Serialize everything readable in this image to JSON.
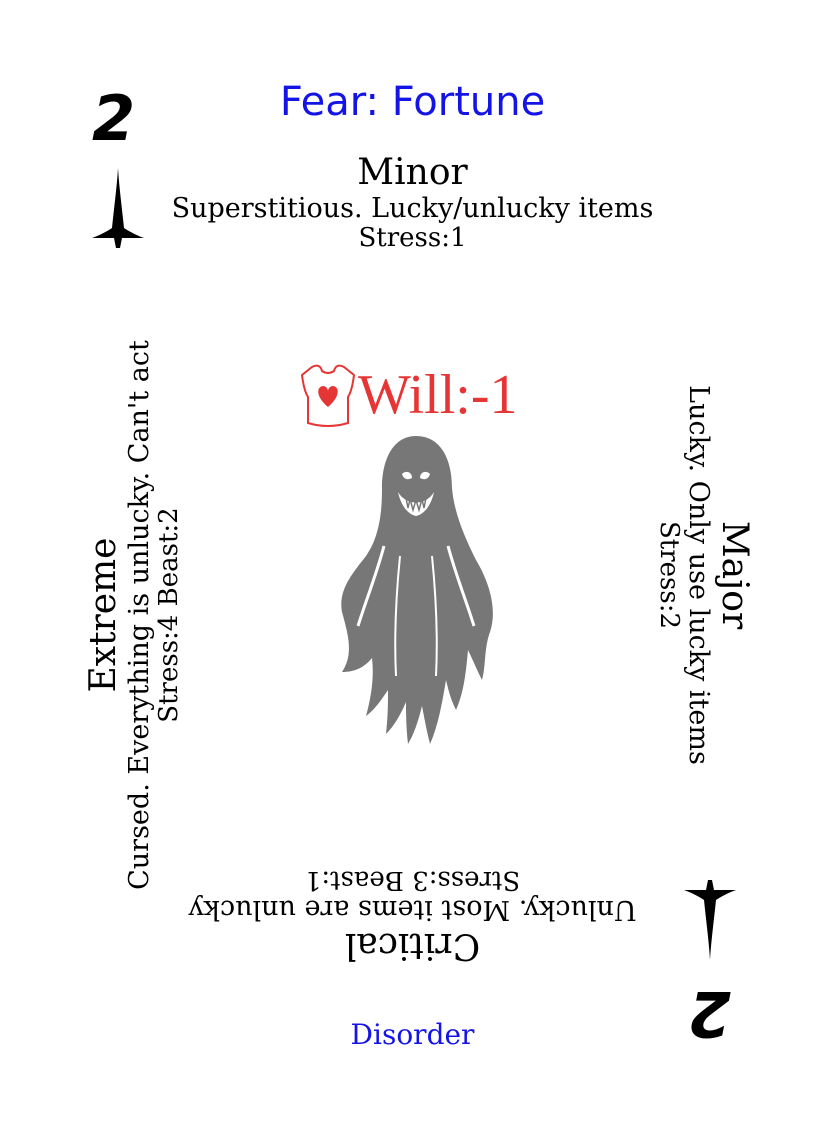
{
  "card": {
    "rank": "2",
    "title": "Fear: Fortune",
    "footer": "Disorder",
    "accent_color": "#1414e6",
    "will_color": "#e63535",
    "suit_icon": "dagger-icon",
    "center_icon": "ghost-icon",
    "attribute_icon": "torso-heart-icon"
  },
  "attribute": {
    "label": "Will:-1"
  },
  "levels": {
    "minor": {
      "name": "Minor",
      "desc": "Superstitious. Lucky/unlucky items",
      "stats": "Stress:1"
    },
    "major": {
      "name": "Major",
      "desc": "Lucky. Only use lucky items",
      "stats": "Stress:2"
    },
    "critical": {
      "name": "Critical",
      "desc": "Unlucky. Most items are unlucky",
      "stats": "Stress:3 Beast:1"
    },
    "extreme": {
      "name": "Extreme",
      "desc": "Cursed. Everything is unlucky. Can't act",
      "stats": "Stress:4 Beast:2"
    }
  }
}
